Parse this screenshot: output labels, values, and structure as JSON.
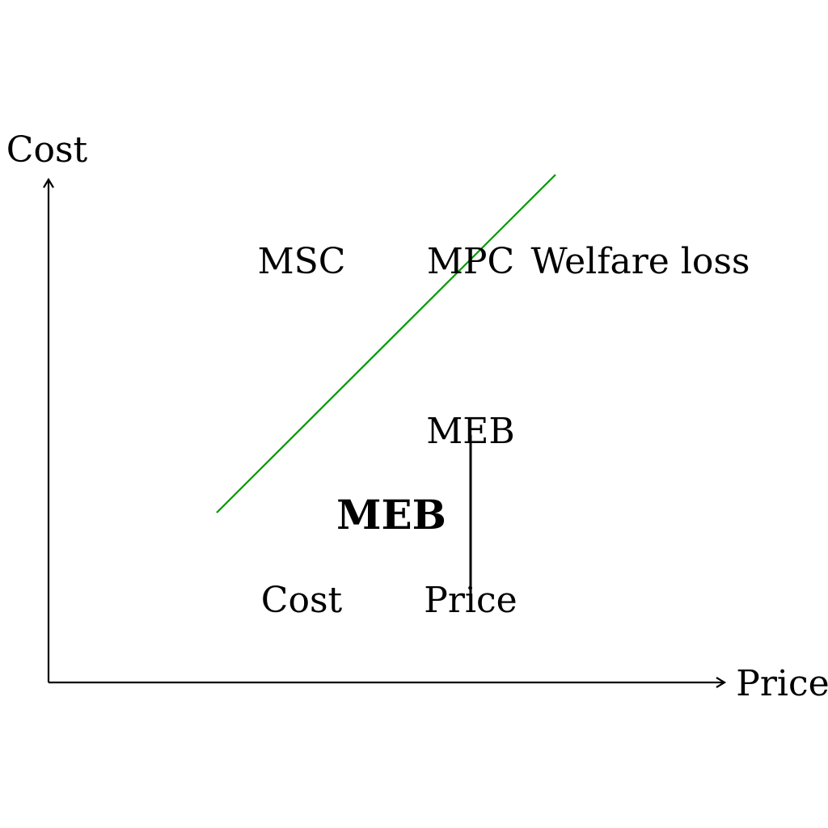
{
  "axes": {
    "y_label": "Cost",
    "x_label": "Price"
  },
  "labels": {
    "msc": "MSC",
    "mpc": "MPC",
    "welfare_loss": "Welfare loss",
    "meb_top": "MEB",
    "meb_bold": "MEB",
    "cost_bottom": "Cost",
    "price_bottom": "Price"
  },
  "colors": {
    "curve": "#009900",
    "axis": "#000000"
  }
}
